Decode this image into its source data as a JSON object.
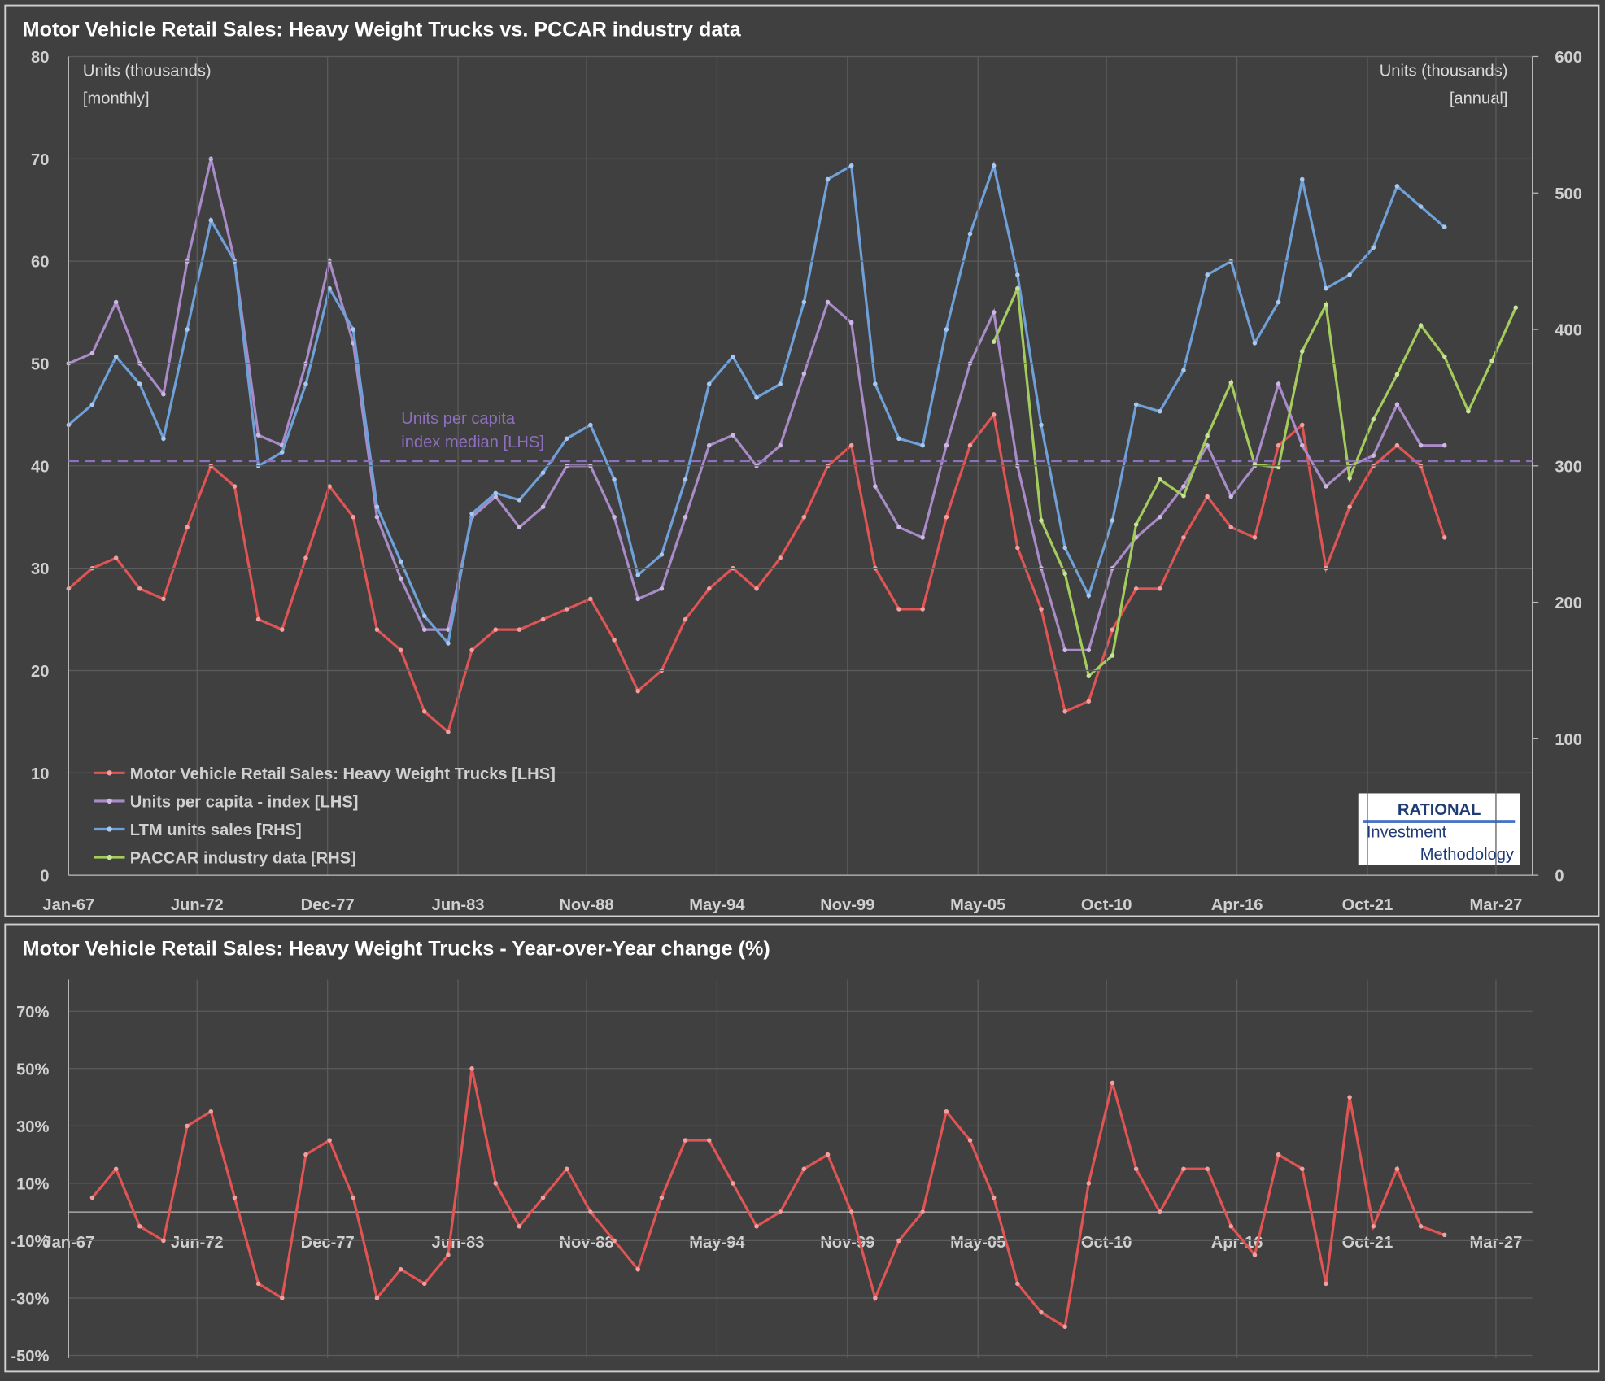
{
  "chart_data": [
    {
      "type": "line",
      "title": "Motor Vehicle Retail Sales: Heavy Weight Trucks vs. PCCAR industry data",
      "y_axis_label": [
        "Units (thousands)",
        "[monthly]"
      ],
      "y2_axis_label": [
        "Units (thousands)",
        "[annual]"
      ],
      "xlim": [
        1967,
        2028.7
      ],
      "xticks": [
        {
          "value": 1967.0,
          "label": "Jan-67"
        },
        {
          "value": 1972.417,
          "label": "Jun-72"
        },
        {
          "value": 1977.917,
          "label": "Dec-77"
        },
        {
          "value": 1983.417,
          "label": "Jun-83"
        },
        {
          "value": 1988.833,
          "label": "Nov-88"
        },
        {
          "value": 1994.333,
          "label": "May-94"
        },
        {
          "value": 1999.833,
          "label": "Nov-99"
        },
        {
          "value": 2005.333,
          "label": "May-05"
        },
        {
          "value": 2010.75,
          "label": "Oct-10"
        },
        {
          "value": 2016.25,
          "label": "Apr-16"
        },
        {
          "value": 2021.75,
          "label": "Oct-21"
        },
        {
          "value": 2027.167,
          "label": "Mar-27"
        }
      ],
      "ylim": [
        0,
        80
      ],
      "yticks": [
        0,
        10,
        20,
        30,
        40,
        50,
        60,
        70,
        80
      ],
      "y2lim": [
        0,
        600
      ],
      "y2ticks": [
        0,
        100,
        200,
        300,
        400,
        500,
        600
      ],
      "grid": true,
      "legend": "lower left",
      "reference_line": {
        "value": 40.5,
        "color": "#8e6fbf",
        "label": [
          "Units per capita",
          "index median [LHS]"
        ]
      },
      "logo": [
        "RATIONAL",
        "Investment",
        "Methodology"
      ],
      "series": [
        {
          "name": "Motor Vehicle Retail Sales: Heavy Weight Trucks [LHS]",
          "color": "#e05454",
          "marker": "#f0a0a0",
          "axis": "y",
          "x": [
            1967,
            1968,
            1969,
            1970,
            1971,
            1972,
            1973,
            1974,
            1975,
            1976,
            1977,
            1978,
            1979,
            1980,
            1981,
            1982,
            1983,
            1984,
            1985,
            1986,
            1987,
            1988,
            1989,
            1990,
            1991,
            1992,
            1993,
            1994,
            1995,
            1996,
            1997,
            1998,
            1999,
            2000,
            2001,
            2002,
            2003,
            2004,
            2005,
            2006,
            2007,
            2008,
            2009,
            2010,
            2011,
            2012,
            2013,
            2014,
            2015,
            2016,
            2017,
            2018,
            2019,
            2020,
            2021,
            2022,
            2023,
            2024,
            2025
          ],
          "values": [
            28,
            30,
            31,
            28,
            27,
            34,
            40,
            38,
            25,
            24,
            31,
            38,
            35,
            24,
            22,
            16,
            14,
            22,
            24,
            24,
            25,
            26,
            27,
            23,
            18,
            20,
            25,
            28,
            30,
            28,
            31,
            35,
            40,
            42,
            30,
            26,
            26,
            35,
            42,
            45,
            32,
            26,
            16,
            17,
            24,
            28,
            28,
            33,
            37,
            34,
            33,
            42,
            44,
            30,
            36,
            40,
            42,
            40,
            33
          ]
        },
        {
          "name": "Units per capita - index [LHS]",
          "color": "#a98bc8",
          "marker": "#cdb8e3",
          "axis": "y",
          "x": [
            1967,
            1968,
            1969,
            1970,
            1971,
            1972,
            1973,
            1974,
            1975,
            1976,
            1977,
            1978,
            1979,
            1980,
            1981,
            1982,
            1983,
            1984,
            1985,
            1986,
            1987,
            1988,
            1989,
            1990,
            1991,
            1992,
            1993,
            1994,
            1995,
            1996,
            1997,
            1998,
            1999,
            2000,
            2001,
            2002,
            2003,
            2004,
            2005,
            2006,
            2007,
            2008,
            2009,
            2010,
            2011,
            2012,
            2013,
            2014,
            2015,
            2016,
            2017,
            2018,
            2019,
            2020,
            2021,
            2022,
            2023,
            2024,
            2025
          ],
          "values": [
            50,
            51,
            56,
            50,
            47,
            60,
            70,
            60,
            43,
            42,
            50,
            60,
            52,
            35,
            29,
            24,
            24,
            35,
            37,
            34,
            36,
            40,
            40,
            35,
            27,
            28,
            35,
            42,
            43,
            40,
            42,
            49,
            56,
            54,
            38,
            34,
            33,
            42,
            50,
            55,
            40,
            30,
            22,
            22,
            30,
            33,
            35,
            38,
            42,
            37,
            40,
            48,
            42,
            38,
            40,
            41,
            46,
            42,
            42
          ]
        },
        {
          "name": "LTM units sales [RHS]",
          "color": "#6fa0d8",
          "marker": "#a9c8ee",
          "axis": "y2",
          "x": [
            1967,
            1968,
            1969,
            1970,
            1971,
            1972,
            1973,
            1974,
            1975,
            1976,
            1977,
            1978,
            1979,
            1980,
            1981,
            1982,
            1983,
            1984,
            1985,
            1986,
            1987,
            1988,
            1989,
            1990,
            1991,
            1992,
            1993,
            1994,
            1995,
            1996,
            1997,
            1998,
            1999,
            2000,
            2001,
            2002,
            2003,
            2004,
            2005,
            2006,
            2007,
            2008,
            2009,
            2010,
            2011,
            2012,
            2013,
            2014,
            2015,
            2016,
            2017,
            2018,
            2019,
            2020,
            2021,
            2022,
            2023,
            2024,
            2025
          ],
          "values": [
            330,
            345,
            380,
            360,
            320,
            400,
            480,
            450,
            300,
            310,
            360,
            430,
            400,
            270,
            230,
            190,
            170,
            265,
            280,
            275,
            295,
            320,
            330,
            290,
            220,
            235,
            290,
            360,
            380,
            350,
            360,
            420,
            510,
            520,
            360,
            320,
            315,
            400,
            470,
            520,
            440,
            330,
            240,
            205,
            260,
            345,
            340,
            370,
            440,
            450,
            390,
            420,
            510,
            430,
            440,
            460,
            505,
            490,
            475
          ]
        },
        {
          "name": "PACCAR industry data [RHS]",
          "color": "#a4cc5c",
          "marker": "#c8e49a",
          "axis": "y2",
          "x": [
            2006,
            2007,
            2008,
            2009,
            2010,
            2011,
            2012,
            2013,
            2014,
            2015,
            2016,
            2017,
            2018,
            2019,
            2020,
            2021,
            2022,
            2023,
            2024,
            2025,
            2026,
            2027,
            2028
          ],
          "values": [
            391,
            430,
            260,
            221,
            146,
            161,
            257,
            290,
            278,
            322,
            361,
            301,
            299,
            384,
            418,
            291,
            334,
            367,
            403,
            380,
            340,
            377,
            416
          ]
        }
      ]
    },
    {
      "type": "line",
      "title": "Motor Vehicle Retail Sales: Heavy Weight Trucks - Year-over-Year change (%)",
      "xlim": [
        1967,
        2028.7
      ],
      "xticks": [
        {
          "value": 1967.0,
          "label": "Jan-67"
        },
        {
          "value": 1972.417,
          "label": "Jun-72"
        },
        {
          "value": 1977.917,
          "label": "Dec-77"
        },
        {
          "value": 1983.417,
          "label": "Jun-83"
        },
        {
          "value": 1988.833,
          "label": "Nov-88"
        },
        {
          "value": 1994.333,
          "label": "May-94"
        },
        {
          "value": 1999.833,
          "label": "Nov-99"
        },
        {
          "value": 2005.333,
          "label": "May-05"
        },
        {
          "value": 2010.75,
          "label": "Oct-10"
        },
        {
          "value": 2016.25,
          "label": "Apr-16"
        },
        {
          "value": 2021.75,
          "label": "Oct-21"
        },
        {
          "value": 2027.167,
          "label": "Mar-27"
        }
      ],
      "ylim": [
        -51,
        81
      ],
      "yticks": [
        {
          "value": -50,
          "label": "-50%"
        },
        {
          "value": -30,
          "label": "-30%"
        },
        {
          "value": -10,
          "label": "-10%"
        },
        {
          "value": 10,
          "label": "10%"
        },
        {
          "value": 30,
          "label": "30%"
        },
        {
          "value": 50,
          "label": "50%"
        },
        {
          "value": 70,
          "label": "70%"
        }
      ],
      "grid": true,
      "series": [
        {
          "name": "Year-over-Year change",
          "color": "#e05454",
          "marker": "#f0a0a0",
          "axis": "y",
          "x": [
            1968,
            1969,
            1970,
            1971,
            1972,
            1973,
            1974,
            1975,
            1976,
            1977,
            1978,
            1979,
            1980,
            1981,
            1982,
            1983,
            1984,
            1985,
            1986,
            1987,
            1988,
            1989,
            1990,
            1991,
            1992,
            1993,
            1994,
            1995,
            1996,
            1997,
            1998,
            1999,
            2000,
            2001,
            2002,
            2003,
            2004,
            2005,
            2006,
            2007,
            2008,
            2009,
            2010,
            2011,
            2012,
            2013,
            2014,
            2015,
            2016,
            2017,
            2018,
            2019,
            2020,
            2021,
            2022,
            2023,
            2024,
            2025
          ],
          "values": [
            5,
            15,
            -5,
            -10,
            30,
            35,
            5,
            -25,
            -30,
            20,
            25,
            5,
            -30,
            -20,
            -25,
            -15,
            50,
            10,
            -5,
            5,
            15,
            0,
            -10,
            -20,
            5,
            25,
            25,
            10,
            -5,
            0,
            15,
            20,
            0,
            -30,
            -10,
            0,
            35,
            25,
            5,
            -25,
            -35,
            -40,
            10,
            45,
            15,
            0,
            15,
            15,
            -5,
            -15,
            20,
            15,
            -25,
            40,
            -5,
            15,
            -5,
            -8
          ]
        }
      ]
    }
  ]
}
